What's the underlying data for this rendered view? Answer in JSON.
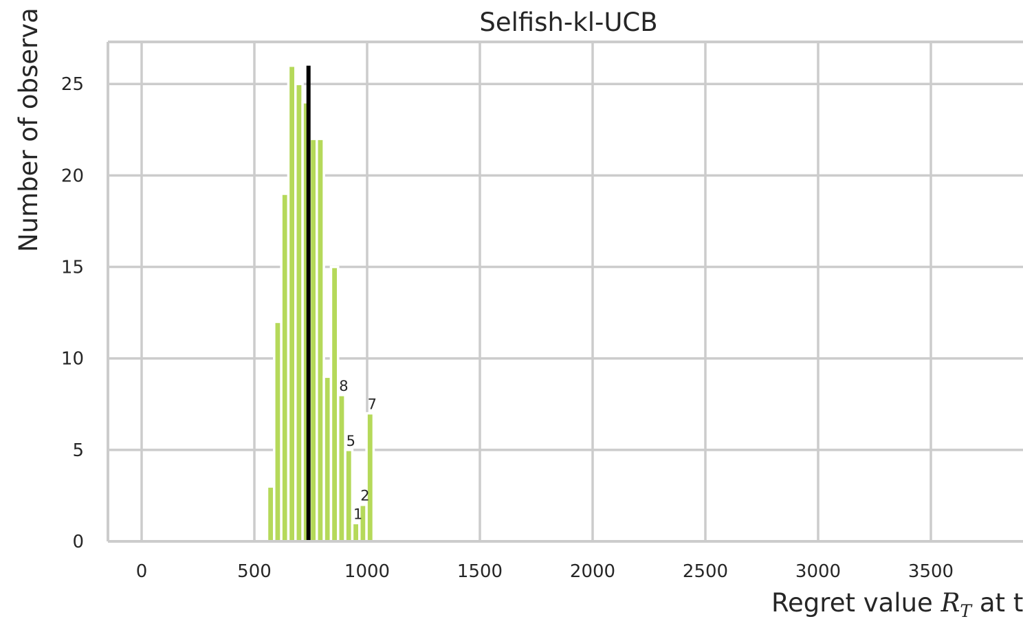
{
  "chart_data": {
    "type": "bar",
    "title": "Selfish-kl-UCB",
    "xlabel_prefix": "Regret value ",
    "xlabel_symbol": "R",
    "xlabel_subscript": "T",
    "xlabel_suffix": " at t",
    "ylabel": "Number of observa",
    "xlim": [
      -150,
      3950
    ],
    "ylim": [
      0,
      27.3
    ],
    "x_ticks": [
      0,
      500,
      1000,
      1500,
      2000,
      2500,
      3000,
      3500
    ],
    "y_ticks": [
      0,
      5,
      10,
      15,
      20,
      25
    ],
    "grid": true,
    "bar_color": "#b5d95a",
    "mean_line_color": "#000000",
    "bin_width": 31.5,
    "bins": [
      {
        "x": 572,
        "count": 3
      },
      {
        "x": 603.5,
        "count": 12
      },
      {
        "x": 635,
        "count": 19
      },
      {
        "x": 666.5,
        "count": 26
      },
      {
        "x": 698,
        "count": 25
      },
      {
        "x": 729.5,
        "count": 24
      },
      {
        "x": 761,
        "count": 22
      },
      {
        "x": 792.5,
        "count": 22
      },
      {
        "x": 824,
        "count": 9
      },
      {
        "x": 855.5,
        "count": 15
      },
      {
        "x": 887,
        "count": 8
      },
      {
        "x": 918.5,
        "count": 5
      },
      {
        "x": 950,
        "count": 1
      },
      {
        "x": 981.5,
        "count": 2
      },
      {
        "x": 1013,
        "count": 7
      }
    ],
    "bar_labels": [
      {
        "x": 887,
        "count": 8,
        "text": "8"
      },
      {
        "x": 918.5,
        "count": 5,
        "text": "5"
      },
      {
        "x": 950,
        "count": 1,
        "text": "1"
      },
      {
        "x": 981.5,
        "count": 2,
        "text": "2"
      },
      {
        "x": 1013,
        "count": 7,
        "text": "7"
      }
    ],
    "mean_line": {
      "x": 740,
      "y_top": 26
    }
  }
}
